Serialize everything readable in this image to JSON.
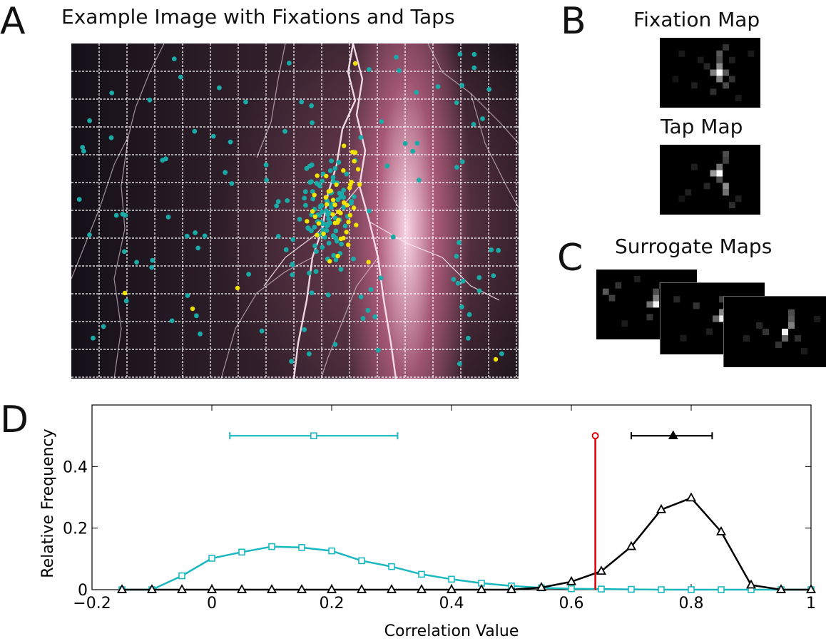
{
  "panels": {
    "a": {
      "letter": "A",
      "title": "Example Image with Fixations and Taps"
    },
    "b": {
      "letter": "B",
      "fixation_title": "Fixation Map",
      "tap_title": "Tap Map"
    },
    "c": {
      "letter": "C",
      "title": "Surrogate Maps"
    },
    "d": {
      "letter": "D"
    }
  },
  "colors": {
    "surrogate": "#1ab8be",
    "observed": "#000000",
    "actual": "#e8000b",
    "fixation_dot": "#1aaaa8",
    "tap_dot": "#f2e400"
  },
  "chart_data": {
    "type": "line",
    "xlabel": "Correlation Value",
    "ylabel": "Relative Frequency",
    "xlim": [
      -0.2,
      1
    ],
    "ylim": [
      0,
      0.6
    ],
    "xticks": [
      "−0.2",
      "0",
      "0.2",
      "0.4",
      "0.6",
      "0.8",
      "1"
    ],
    "yticks": [
      "0",
      "0.2",
      "0.4"
    ],
    "series": [
      {
        "marker": "square",
        "x": [
          -0.15,
          -0.1,
          -0.05,
          0,
          0.05,
          0.1,
          0.15,
          0.2,
          0.25,
          0.3,
          0.35,
          0.4,
          0.45,
          0.5,
          0.55,
          0.6,
          0.65,
          0.7,
          0.75,
          0.8,
          0.85,
          0.9,
          0.95,
          1.0
        ],
        "y": [
          0,
          0,
          0.045,
          0.102,
          0.122,
          0.14,
          0.137,
          0.126,
          0.094,
          0.075,
          0.05,
          0.034,
          0.021,
          0.012,
          0.006,
          0.003,
          0.002,
          0.001,
          0,
          0,
          0,
          0,
          0,
          0
        ],
        "errorbar": {
          "center": 0.17,
          "low": 0.03,
          "high": 0.31,
          "y": 0.5
        }
      },
      {
        "marker": "triangle",
        "x": [
          -0.15,
          -0.1,
          -0.05,
          0,
          0.05,
          0.1,
          0.15,
          0.2,
          0.25,
          0.3,
          0.35,
          0.4,
          0.45,
          0.5,
          0.55,
          0.6,
          0.65,
          0.7,
          0.75,
          0.8,
          0.85,
          0.9,
          0.95,
          1.0
        ],
        "y": [
          0,
          0,
          0,
          0,
          0,
          0,
          0,
          0,
          0,
          0,
          0,
          0,
          0,
          0,
          0.007,
          0.026,
          0.06,
          0.14,
          0.26,
          0.298,
          0.188,
          0.015,
          0,
          0
        ],
        "errorbar": {
          "center": 0.77,
          "low": 0.7,
          "high": 0.835,
          "y": 0.5
        }
      }
    ],
    "actual_value": {
      "x": 0.64,
      "y": 0.5
    }
  }
}
